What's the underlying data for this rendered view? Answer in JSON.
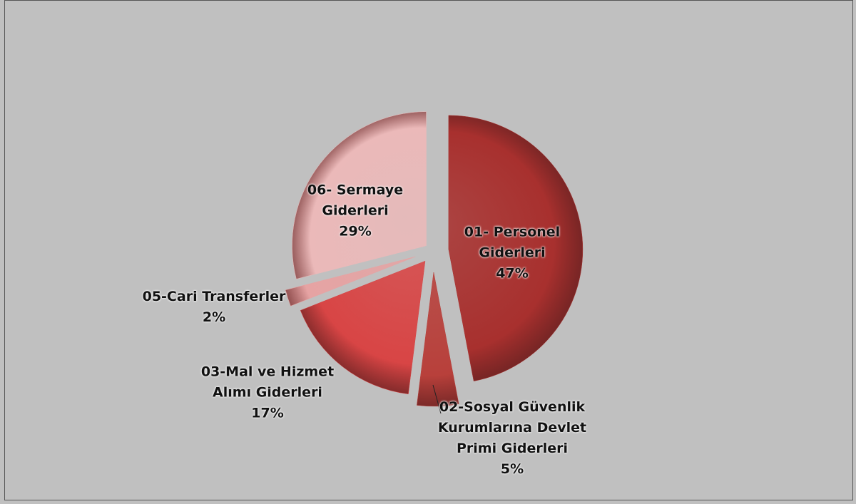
{
  "chart_data": {
    "type": "pie",
    "categories": [
      "01- Personel Giderleri",
      "02-Sosyal Güvenlik Kurumlarına Devlet Primi Giderleri",
      "03-Mal ve Hizmet Alımı Giderleri",
      "05-Cari Transferler",
      "06- Sermaye Giderleri"
    ],
    "values": [
      47,
      5,
      17,
      2,
      29
    ],
    "value_labels": [
      "47%",
      "5%",
      "17%",
      "2%",
      "29%"
    ],
    "colors": [
      "#a8302e",
      "#b8403b",
      "#d84545",
      "#e6a3a3",
      "#ebb9b9"
    ]
  }
}
